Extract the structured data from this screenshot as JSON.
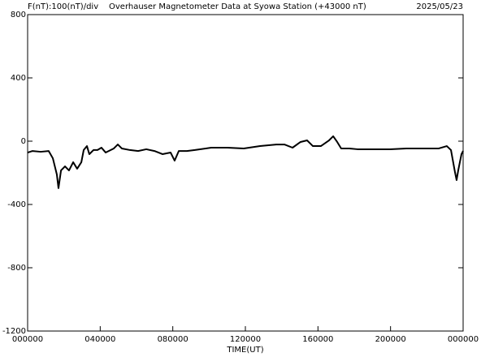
{
  "chart_data": {
    "type": "line",
    "y_label": "F(nT):100(nT)/div",
    "title": "Overhauser Magnetometer Data at Syowa Station (+43000 nT)",
    "date": "2025/05/23",
    "x_label": "TIME(UT)",
    "x": [
      0,
      0.27,
      0.72,
      1.16,
      1.39,
      1.61,
      1.7,
      1.84,
      2.06,
      2.28,
      2.51,
      2.73,
      2.96,
      3.09,
      3.27,
      3.4,
      3.63,
      3.85,
      4.07,
      4.3,
      4.75,
      4.97,
      5.19,
      5.64,
      6.09,
      6.54,
      6.99,
      7.43,
      7.88,
      8.1,
      8.33,
      8.78,
      9.22,
      10.12,
      11.01,
      11.91,
      12.81,
      13.7,
      14.15,
      14.6,
      15.04,
      15.4,
      15.72,
      16.16,
      16.61,
      16.84,
      17.06,
      17.28,
      17.73,
      18.18,
      19.07,
      19.97,
      20.87,
      21.76,
      22.66,
      23.1,
      23.33,
      23.55,
      23.64,
      23.73,
      23.82,
      23.91,
      24
    ],
    "series": [
      {
        "color": "#000000",
        "values": [
          -72,
          -62,
          -67,
          -62,
          -108,
          -210,
          -297,
          -185,
          -159,
          -185,
          -133,
          -174,
          -133,
          -56,
          -31,
          -82,
          -56,
          -56,
          -41,
          -72,
          -46,
          -21,
          -46,
          -56,
          -62,
          -51,
          -62,
          -82,
          -72,
          -123,
          -62,
          -62,
          -56,
          -41,
          -41,
          -46,
          -31,
          -21,
          -21,
          -41,
          -5,
          5,
          -31,
          -31,
          5,
          31,
          -5,
          -46,
          -46,
          -51,
          -51,
          -51,
          -46,
          -46,
          -46,
          -31,
          -56,
          -195,
          -246,
          -185,
          -133,
          -82,
          -62
        ]
      }
    ],
    "xlim": [
      0,
      24
    ],
    "xticks": [
      {
        "value": 0,
        "label": "000000"
      },
      {
        "value": 4,
        "label": "040000"
      },
      {
        "value": 8,
        "label": "080000"
      },
      {
        "value": 12,
        "label": "120000"
      },
      {
        "value": 16,
        "label": "160000"
      },
      {
        "value": 20,
        "label": "200000"
      },
      {
        "value": 24,
        "label": "000000"
      }
    ],
    "ylim": [
      -1200,
      800
    ],
    "yticks": [
      800,
      400,
      0,
      -400,
      -800,
      -1200
    ]
  }
}
